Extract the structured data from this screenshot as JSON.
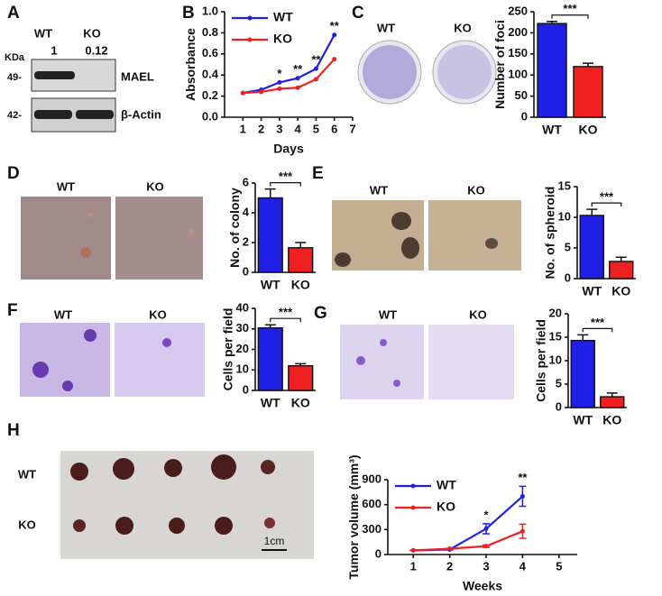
{
  "panel_labels": [
    "A",
    "B",
    "C",
    "D",
    "E",
    "F",
    "G",
    "H"
  ],
  "blot": {
    "lanes": [
      "WT",
      "KO"
    ],
    "unit": "KDa",
    "ratios": [
      1,
      0.12
    ],
    "markers": [
      "49-",
      "42-"
    ],
    "proteins": [
      "MAEL",
      "β-Actin"
    ]
  },
  "photos": [
    {
      "labels": [
        "WT",
        "KO"
      ]
    },
    {
      "labels": [
        "WT",
        "KO"
      ]
    },
    {
      "labels": [
        "WT",
        "KO"
      ]
    },
    {
      "labels": [
        "WT",
        "KO"
      ]
    },
    {
      "labels": [
        "WT",
        "KO"
      ]
    }
  ],
  "tumor_photo": {
    "rows": [
      "WT",
      "KO"
    ],
    "scale_bar": "1cm"
  },
  "chart_data": [
    {
      "type": "line",
      "x": [
        1,
        2,
        3,
        4,
        5,
        6
      ],
      "xlim": [
        0,
        7
      ],
      "xticks": [
        1,
        2,
        3,
        4,
        5,
        6,
        7
      ],
      "ylim": [
        0,
        1
      ],
      "yticks": [
        {
          "value": 0,
          "label": "0.0"
        },
        {
          "value": 0.2,
          "label": "0.2"
        },
        {
          "value": 0.4,
          "label": "0.4"
        },
        {
          "value": 0.6,
          "label": "0.6"
        },
        {
          "value": 0.8,
          "label": "0.8"
        },
        {
          "value": 1,
          "label": "1.0"
        }
      ],
      "x_label": "Days",
      "y_label": "Absorbance",
      "legend": "upper left",
      "series": [
        {
          "name": "WT",
          "color": "#1f1fe6",
          "values": [
            0.23,
            0.26,
            0.33,
            0.37,
            0.46,
            0.78
          ]
        },
        {
          "name": "KO",
          "color": "#f02020",
          "values": [
            0.23,
            0.24,
            0.27,
            0.28,
            0.36,
            0.55
          ]
        }
      ],
      "significance": [
        null,
        null,
        "*",
        "**",
        "**",
        "**"
      ]
    },
    {
      "type": "bar",
      "categories": [
        "WT",
        "KO"
      ],
      "values": [
        222,
        120
      ],
      "errors": [
        5,
        8
      ],
      "colors": [
        "#1f1fe6",
        "#f02020"
      ],
      "ylim": [
        0,
        250
      ],
      "yticks": [
        0,
        50,
        100,
        150,
        200,
        250
      ],
      "y_label": "Number of foci",
      "significance": "***"
    },
    {
      "type": "bar",
      "categories": [
        "WT",
        "KO"
      ],
      "values": [
        5.0,
        1.65
      ],
      "errors": [
        0.6,
        0.35
      ],
      "colors": [
        "#1f1fe6",
        "#f02020"
      ],
      "ylim": [
        0,
        6
      ],
      "yticks": [
        0,
        2,
        4,
        6
      ],
      "y_label": "No. of colony",
      "significance": "***"
    },
    {
      "type": "bar",
      "categories": [
        "WT",
        "KO"
      ],
      "values": [
        10.3,
        2.8
      ],
      "errors": [
        1.0,
        0.7
      ],
      "colors": [
        "#1f1fe6",
        "#f02020"
      ],
      "ylim": [
        0,
        15
      ],
      "yticks": [
        0,
        5,
        10,
        15
      ],
      "y_label": "No. of spheroid",
      "significance": "***"
    },
    {
      "type": "bar",
      "categories": [
        "WT",
        "KO"
      ],
      "values": [
        30.5,
        12
      ],
      "errors": [
        1.5,
        1
      ],
      "colors": [
        "#1f1fe6",
        "#f02020"
      ],
      "ylim": [
        0,
        40
      ],
      "yticks": [
        0,
        10,
        20,
        30,
        40
      ],
      "y_label": "Cells per field",
      "significance": "***"
    },
    {
      "type": "bar",
      "categories": [
        "WT",
        "KO"
      ],
      "values": [
        14.3,
        2.3
      ],
      "errors": [
        1.2,
        0.8
      ],
      "colors": [
        "#1f1fe6",
        "#f02020"
      ],
      "ylim": [
        0,
        20
      ],
      "yticks": [
        0,
        5,
        10,
        15,
        20
      ],
      "y_label": "Cells per field",
      "significance": "***"
    },
    {
      "type": "line",
      "x": [
        1,
        2,
        3,
        4
      ],
      "xlim": [
        0.3,
        5.5
      ],
      "xticks": [
        1,
        2,
        3,
        4,
        5
      ],
      "ylim": [
        0,
        900
      ],
      "yticks": [
        0,
        300,
        600,
        900
      ],
      "x_label": "Weeks",
      "y_label": "Tumor volume (mm³)",
      "legend": "upper left",
      "series": [
        {
          "name": "WT",
          "color": "#1f1fe6",
          "values": [
            50,
            60,
            310,
            700
          ],
          "errors": [
            0,
            5,
            60,
            120
          ]
        },
        {
          "name": "KO",
          "color": "#f02020",
          "values": [
            50,
            70,
            100,
            280
          ],
          "errors": [
            0,
            5,
            15,
            85
          ]
        }
      ],
      "significance": [
        null,
        null,
        "*",
        "**"
      ]
    }
  ]
}
